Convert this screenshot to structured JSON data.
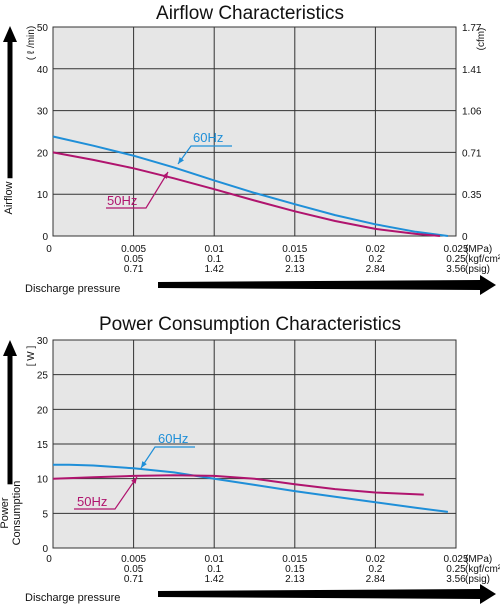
{
  "colors": {
    "hz60": "#1f8fd8",
    "hz50": "#b0146e",
    "plot_bg": "#e6e6e6",
    "grid": "#333333"
  },
  "x_ticks": {
    "mpa": [
      "0",
      "0.005",
      "0.01",
      "0.015",
      "0.02",
      "0.025"
    ],
    "kgf": [
      "",
      "0.05",
      "0.1",
      "0.15",
      "0.2",
      "0.25"
    ],
    "psig": [
      "",
      "0.71",
      "1.42",
      "2.13",
      "2.84",
      "3.56"
    ],
    "units": [
      "(MPa)",
      "(kgf/cm²)",
      "(psig)"
    ]
  },
  "xlabel": "Discharge pressure",
  "chart_data": [
    {
      "type": "line",
      "title": "Airflow Characteristics",
      "ylabel": "Airflow",
      "yunit": "( ℓ /min)",
      "yunit_right": "(cfm)",
      "ylim": [
        0,
        50
      ],
      "xlim": [
        0,
        0.025
      ],
      "grid": true,
      "y_ticks": [
        "0",
        "10",
        "20",
        "30",
        "40",
        "50"
      ],
      "y2_ticks": [
        "0",
        "0.35",
        "0.71",
        "1.06",
        "1.41",
        "1.77"
      ],
      "series": [
        {
          "name": "60Hz",
          "x": [
            0,
            0.0025,
            0.005,
            0.0075,
            0.01,
            0.0125,
            0.015,
            0.0175,
            0.02,
            0.0225,
            0.0245
          ],
          "y": [
            23.8,
            21.6,
            19.2,
            16.4,
            13.3,
            10.3,
            7.6,
            5.0,
            2.8,
            1.0,
            0
          ]
        },
        {
          "name": "50Hz",
          "x": [
            0,
            0.0025,
            0.005,
            0.0075,
            0.01,
            0.0125,
            0.015,
            0.0175,
            0.02,
            0.0225,
            0.024
          ],
          "y": [
            20.0,
            18.2,
            16.2,
            13.8,
            11.2,
            8.5,
            5.9,
            3.6,
            1.7,
            0.5,
            0
          ]
        }
      ]
    },
    {
      "type": "line",
      "title": "Power Consumption Characteristics",
      "ylabel": "Power Consumption",
      "yunit": "[ W ]",
      "ylim": [
        0,
        30
      ],
      "xlim": [
        0,
        0.025
      ],
      "grid": true,
      "y_ticks": [
        "0",
        "5",
        "10",
        "15",
        "20",
        "25",
        "30"
      ],
      "series": [
        {
          "name": "60Hz",
          "x": [
            0,
            0.001,
            0.0025,
            0.005,
            0.0075,
            0.01,
            0.0125,
            0.015,
            0.0175,
            0.02,
            0.0225,
            0.0245
          ],
          "y": [
            12.0,
            12.0,
            11.9,
            11.5,
            10.9,
            10.0,
            9.1,
            8.2,
            7.4,
            6.6,
            5.8,
            5.2
          ]
        },
        {
          "name": "50Hz",
          "x": [
            0,
            0.0025,
            0.005,
            0.0075,
            0.01,
            0.0125,
            0.015,
            0.0175,
            0.02,
            0.023
          ],
          "y": [
            10.0,
            10.2,
            10.4,
            10.5,
            10.4,
            10.0,
            9.2,
            8.5,
            8.0,
            7.7
          ]
        }
      ]
    }
  ]
}
